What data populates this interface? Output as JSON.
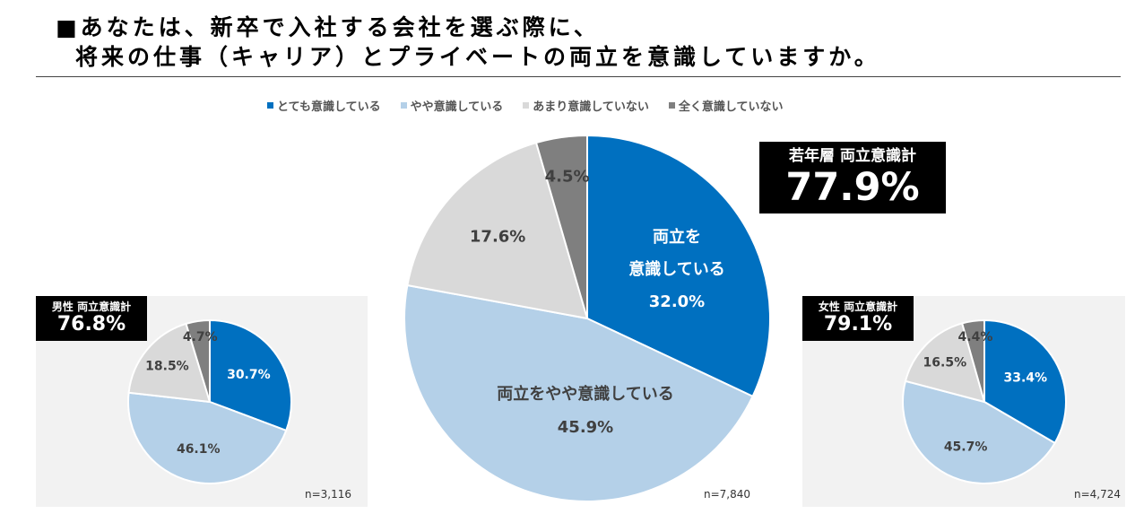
{
  "header": {
    "title_line1": "■あなたは、新卒で入社する会社を選ぶ際に、",
    "title_line2": "将来の仕事（キャリア）とプライベートの両立を意識していますか。"
  },
  "legend": [
    {
      "label": "とても意識している",
      "color": "#0070c0"
    },
    {
      "label": "やや意識している",
      "color": "#b4d0e8"
    },
    {
      "label": "あまり意識していない",
      "color": "#d9d9d9"
    },
    {
      "label": "全く意識していない",
      "color": "#7f7f7f"
    }
  ],
  "badges": {
    "youth": {
      "label": "若年層 両立意識計",
      "value": "77.9%"
    },
    "male": {
      "label": "男性 両立意識計",
      "value": "76.8%"
    },
    "female": {
      "label": "女性 両立意識計",
      "value": "79.1%"
    }
  },
  "chart_data": [
    {
      "type": "pie",
      "n_label": "n=7,840",
      "values": [
        32.0,
        45.9,
        17.6,
        4.5
      ],
      "slice_labels": [
        "32.0%",
        "45.9%",
        "17.6%",
        "4.5%"
      ],
      "annotations": {
        "very": [
          "両立を",
          "意識している"
        ],
        "somewhat": "両立をやや意識している"
      }
    },
    {
      "type": "pie",
      "n_label": "n=3,116",
      "values": [
        30.7,
        46.1,
        18.5,
        4.7
      ],
      "slice_labels": [
        "30.7%",
        "46.1%",
        "18.5%",
        "4.7%"
      ]
    },
    {
      "type": "pie",
      "n_label": "n=4,724",
      "values": [
        33.4,
        45.7,
        16.5,
        4.4
      ],
      "slice_labels": [
        "33.4%",
        "45.7%",
        "16.5%",
        "4.4%"
      ]
    }
  ]
}
